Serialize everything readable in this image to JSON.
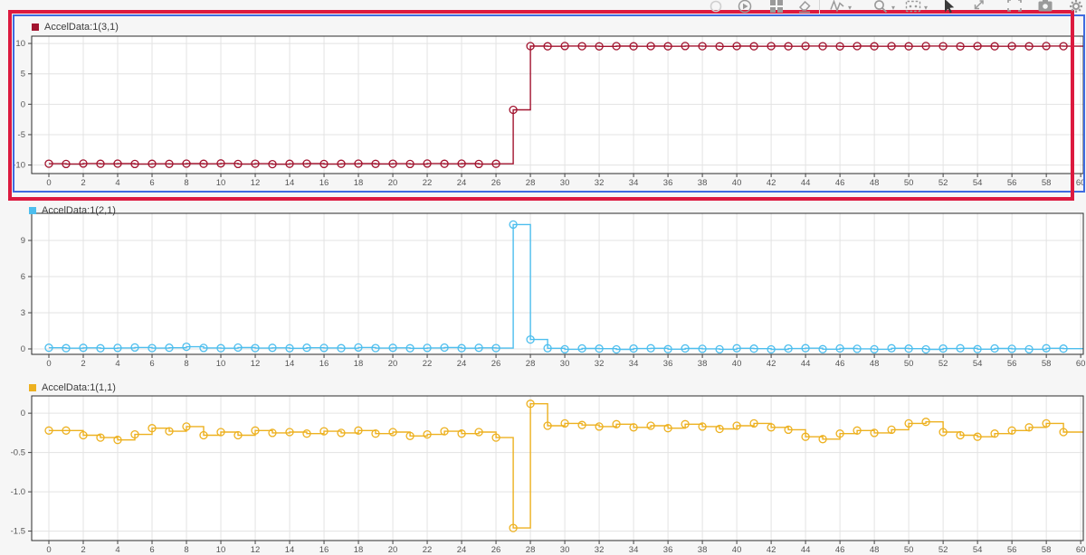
{
  "toolbar": {
    "icons": [
      {
        "name": "record",
        "disabled": true,
        "caret": false
      },
      {
        "name": "replay",
        "disabled": false,
        "caret": false
      },
      {
        "name": "layout",
        "disabled": false,
        "caret": false
      },
      {
        "name": "clear-results",
        "disabled": false,
        "caret": false
      },
      {
        "name": "line-style",
        "disabled": false,
        "caret": true
      },
      {
        "name": "zoom",
        "disabled": false,
        "caret": true
      },
      {
        "name": "data-cursors",
        "disabled": false,
        "caret": true
      },
      {
        "name": "pointer",
        "disabled": false,
        "caret": false,
        "active": true
      },
      {
        "name": "previous-view",
        "disabled": false,
        "caret": false
      },
      {
        "name": "fit-to-view",
        "disabled": false,
        "caret": false
      },
      {
        "name": "snapshot",
        "disabled": false,
        "caret": false
      },
      {
        "name": "settings",
        "disabled": false,
        "caret": false
      }
    ]
  },
  "annotation": {
    "highlight_color": "#dc1a3f",
    "selection_color": "#3f6be0"
  },
  "chart_data": [
    {
      "type": "line",
      "interpolation": "stairs",
      "marker": "circle",
      "legend": "AccelData:1(3,1)",
      "color": "#A2142F",
      "x_start": 0,
      "x_step": 1,
      "values": [
        -9.78,
        -9.82,
        -9.75,
        -9.8,
        -9.76,
        -9.83,
        -9.79,
        -9.81,
        -9.77,
        -9.8,
        -9.74,
        -9.82,
        -9.78,
        -9.85,
        -9.8,
        -9.77,
        -9.82,
        -9.79,
        -9.76,
        -9.81,
        -9.78,
        -9.83,
        -9.75,
        -9.8,
        -9.77,
        -9.82,
        -9.79,
        -0.92,
        9.56,
        9.53,
        9.58,
        9.55,
        9.52,
        9.57,
        9.54,
        9.56,
        9.53,
        9.58,
        9.55,
        9.52,
        9.57,
        9.54,
        9.56,
        9.53,
        9.58,
        9.55,
        9.52,
        9.57,
        9.54,
        9.56,
        9.53,
        9.58,
        9.55,
        9.52,
        9.57,
        9.54,
        9.56,
        9.53,
        9.58,
        9.55
      ],
      "xlim": [
        -1,
        60.15
      ],
      "ylim": [
        -11.4,
        11.2
      ],
      "grid": true,
      "legend_position": "top-left",
      "xticks": [
        0,
        2,
        4,
        6,
        8,
        10,
        12,
        14,
        16,
        18,
        20,
        22,
        24,
        26,
        28,
        30,
        32,
        34,
        36,
        38,
        40,
        42,
        44,
        46,
        48,
        50,
        52,
        54,
        56,
        58,
        60
      ],
      "yticks": [
        10,
        5,
        0,
        -5,
        -10
      ],
      "ytick_labels": [
        "10",
        "5",
        "0",
        "-5",
        "-10"
      ]
    },
    {
      "type": "line",
      "interpolation": "stairs",
      "marker": "circle",
      "legend": "AccelData:1(2,1)",
      "color": "#4DBEEE",
      "x_start": 0,
      "x_step": 1,
      "values": [
        0.1,
        0.06,
        0.09,
        0.05,
        0.08,
        0.12,
        0.07,
        0.1,
        0.18,
        0.08,
        0.06,
        0.11,
        0.07,
        0.09,
        0.05,
        0.1,
        0.08,
        0.06,
        0.12,
        0.07,
        0.09,
        0.05,
        0.08,
        0.11,
        0.06,
        0.09,
        0.07,
        10.32,
        0.78,
        0.05,
        -0.03,
        0.04,
        0.02,
        -0.04,
        0.03,
        0.05,
        -0.02,
        0.04,
        0.01,
        -0.03,
        0.05,
        0.02,
        -0.04,
        0.03,
        0.06,
        -0.02,
        0.04,
        0.01,
        -0.03,
        0.05,
        0.02,
        -0.04,
        0.03,
        0.05,
        -0.02,
        0.04,
        0.01,
        -0.03,
        0.05,
        0.02
      ],
      "xlim": [
        -1,
        60.15
      ],
      "ylim": [
        -0.45,
        11.25
      ],
      "grid": true,
      "legend_position": "top-left",
      "xticks": [
        0,
        2,
        4,
        6,
        8,
        10,
        12,
        14,
        16,
        18,
        20,
        22,
        24,
        26,
        28,
        30,
        32,
        34,
        36,
        38,
        40,
        42,
        44,
        46,
        48,
        50,
        52,
        54,
        56,
        58,
        60
      ],
      "yticks": [
        9,
        6,
        3,
        0
      ],
      "ytick_labels": [
        "9",
        "6",
        "3",
        "0"
      ]
    },
    {
      "type": "line",
      "interpolation": "stairs",
      "marker": "circle",
      "legend": "AccelData:1(1,1)",
      "color": "#EDB120",
      "x_start": 0,
      "x_step": 1,
      "values": [
        -0.22,
        -0.22,
        -0.28,
        -0.31,
        -0.34,
        -0.27,
        -0.19,
        -0.23,
        -0.17,
        -0.28,
        -0.24,
        -0.28,
        -0.22,
        -0.25,
        -0.24,
        -0.26,
        -0.23,
        -0.25,
        -0.22,
        -0.26,
        -0.24,
        -0.29,
        -0.27,
        -0.23,
        -0.26,
        -0.24,
        -0.31,
        -1.46,
        0.12,
        -0.16,
        -0.13,
        -0.15,
        -0.17,
        -0.14,
        -0.18,
        -0.16,
        -0.19,
        -0.14,
        -0.17,
        -0.2,
        -0.16,
        -0.13,
        -0.18,
        -0.21,
        -0.3,
        -0.33,
        -0.26,
        -0.22,
        -0.25,
        -0.21,
        -0.13,
        -0.11,
        -0.24,
        -0.28,
        -0.3,
        -0.26,
        -0.22,
        -0.18,
        -0.13,
        -0.24
      ],
      "xlim": [
        -1,
        60.15
      ],
      "ylim": [
        -1.62,
        0.22
      ],
      "grid": true,
      "legend_position": "top-left",
      "xticks": [
        0,
        2,
        4,
        6,
        8,
        10,
        12,
        14,
        16,
        18,
        20,
        22,
        24,
        26,
        28,
        30,
        32,
        34,
        36,
        38,
        40,
        42,
        44,
        46,
        48,
        50,
        52,
        54,
        56,
        58,
        60
      ],
      "yticks": [
        0,
        -0.5,
        -1,
        -1.5
      ],
      "ytick_labels": [
        "0",
        "-0.5",
        "-1.0",
        "-1.5"
      ]
    }
  ]
}
